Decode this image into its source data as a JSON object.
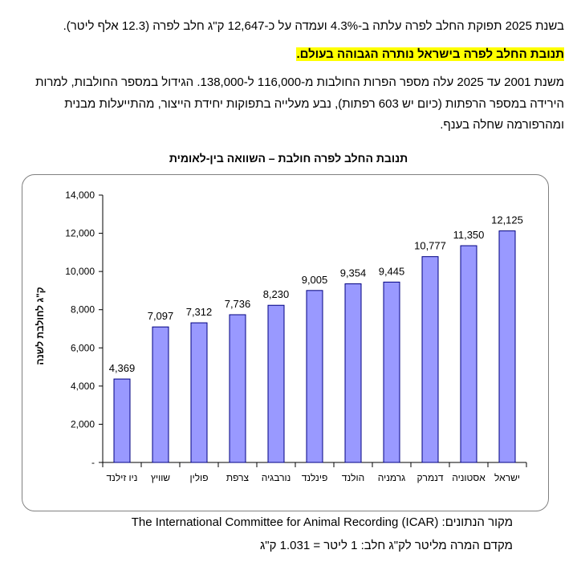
{
  "text": {
    "p1": "בשנת 2025 תפוקת החלב לפרה עלתה ב-4.3% ועמדה על כ-12,647 ק\"ג חלב לפרה (12.3 אלף ליטר).",
    "highlight": "תנובת החלב לפרה בישראל נותרה הגבוהה בעולם.",
    "p3": "משנת 2001 עד 2025 עלה מספר הפרות החולבות מ-116,000 ל-138,000. הגידול במספר החולבות, למרות הירידה במספר הרפתות (כיום יש 603 רפתות), נבע מעלייה בתפוקות יחידת הייצור, מהתייעלות מבנית ומהרפורמה שחלה בענף.",
    "source_label": "מקור הנתונים:",
    "source_org": "The International Committee for Animal Recording (ICAR)",
    "conversion": "מקדם המרה מליטר לק\"ג חלב: 1 ליטר = 1.031 ק\"ג"
  },
  "chart_data": {
    "type": "bar",
    "title": "תנובת החלב לפרה חולבת – השוואה בין-לאומית",
    "ylabel": "ק\"ג לחולבת לשנה",
    "xlabel": "",
    "categories": [
      "ניו זילנד",
      "שוויץ",
      "פולין",
      "צרפת",
      "נורבגיה",
      "פינלנד",
      "הולנד",
      "גרמניה",
      "דנמרק",
      "אסטוניה",
      "ישראל"
    ],
    "values": [
      4369,
      7097,
      7312,
      7736,
      8230,
      9005,
      9354,
      9445,
      10777,
      11350,
      12125
    ],
    "data_labels": [
      "4,369",
      "7,097",
      "7,312",
      "7,736",
      "8,230",
      "9,005",
      "9,354",
      "9,445",
      "10,777",
      "11,350",
      "12,125"
    ],
    "ylim": [
      0,
      14000
    ],
    "y_ticks": [
      0,
      2000,
      4000,
      6000,
      8000,
      10000,
      12000,
      14000
    ],
    "y_tick_labels": [
      "-",
      "2,000",
      "4,000",
      "6,000",
      "8,000",
      "10,000",
      "12,000",
      "14,000"
    ],
    "grid": false,
    "legend": "none",
    "bar_color": "#9999ff",
    "bar_edge_color": "#000080"
  }
}
